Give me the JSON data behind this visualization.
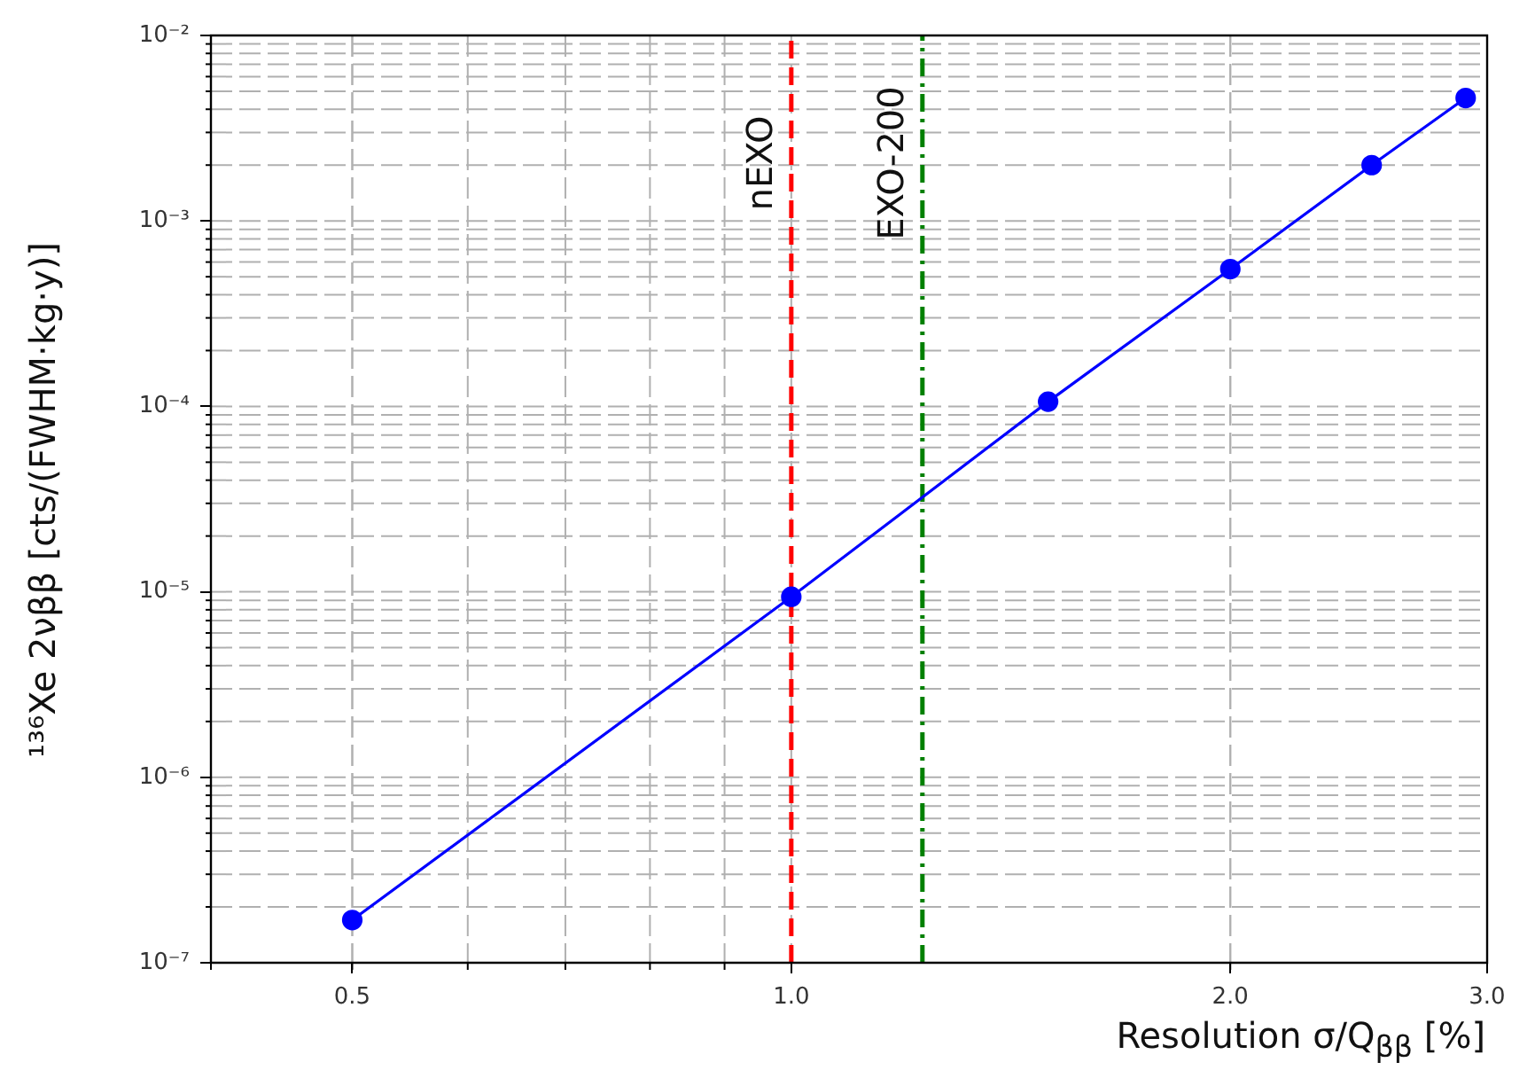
{
  "chart_data": {
    "type": "line",
    "xlabel": "Resolution σ/Q$_{ββ}$ [%]",
    "ylabel": "¹³⁶Xe  2νββ [cts/(FWHM·kg·y)]",
    "x": [
      0.5,
      1.0,
      1.5,
      2.0,
      2.5,
      2.9
    ],
    "series": [
      {
        "color": "#0000ff",
        "values": [
          1.7e-07,
          9.4e-06,
          0.000106,
          0.00055,
          0.002,
          0.0046
        ]
      }
    ],
    "log": "xy",
    "xlim": [
      0.4,
      3.0
    ],
    "xticks": [
      {
        "value": 0.5,
        "label": "0.5"
      },
      {
        "value": 1,
        "label": "1.0"
      },
      {
        "value": 2,
        "label": "2.0"
      },
      {
        "value": 3,
        "label": "3.0"
      }
    ],
    "ylim": [
      1e-07,
      0.01
    ],
    "yticks": [
      {
        "value": 1e-07,
        "label": "10⁻⁷"
      },
      {
        "value": 1e-06,
        "label": "10⁻⁶"
      },
      {
        "value": 1e-05,
        "label": "10⁻⁵"
      },
      {
        "value": 0.0001,
        "label": "10⁻⁴"
      },
      {
        "value": 0.001,
        "label": "10⁻³"
      },
      {
        "value": 0.01,
        "label": "10⁻²"
      }
    ],
    "grid": true,
    "marker": "circle",
    "line_style": "solid",
    "ref_lines": [
      {
        "axis": "x",
        "value": 1.0,
        "label": "nEXO",
        "color": "#ff0000",
        "line_style": "dashed"
      },
      {
        "axis": "x",
        "value": 1.23,
        "label": "EXO-200",
        "color": "#008000",
        "line_style": "dashdot"
      }
    ]
  }
}
